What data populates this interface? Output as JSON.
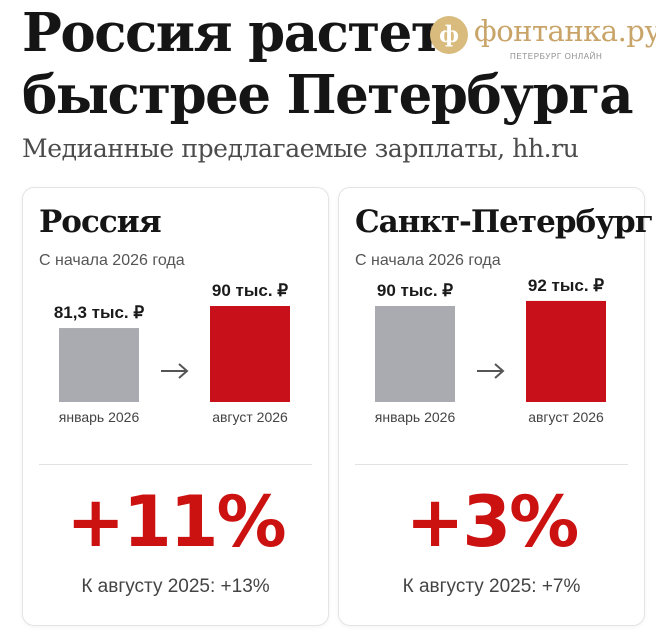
{
  "header": {
    "title_line1": "Россия растет",
    "title_line2": "быстрее Петербурга",
    "subtitle": "Медианные предлагаемые зарплаты, hh.ru"
  },
  "logo": {
    "name": "фонтанка.ру",
    "tagline": "ПЕТЕРБУРГ ОНЛАЙН",
    "icon": "fontanka-logo-icon"
  },
  "colors": {
    "before": "#a9abb1",
    "after": "#c8101b",
    "accent": "#cc1111",
    "arrow": "#555555"
  },
  "chart_data": [
    {
      "type": "bar",
      "title": "Россия",
      "subtitle": "С начала 2026 года",
      "categories": [
        "январь 2026",
        "август 2026"
      ],
      "values": [
        81.3,
        90
      ],
      "value_labels": [
        "81,3 тыс. ₽",
        "90 тыс. ₽"
      ],
      "unit": "тыс. ₽",
      "ylim": [
        0,
        100
      ],
      "change_label": "+11%",
      "comparison": "К августу 2025: +13%"
    },
    {
      "type": "bar",
      "title": "Санкт-Петербург",
      "subtitle": "С начала 2026 года",
      "categories": [
        "январь 2026",
        "август 2026"
      ],
      "values": [
        90,
        92
      ],
      "value_labels": [
        "90 тыс. ₽",
        "92 тыс. ₽"
      ],
      "unit": "тыс. ₽",
      "ylim": [
        0,
        100
      ],
      "change_label": "+3%",
      "comparison": "К августу 2025: +7%"
    }
  ]
}
